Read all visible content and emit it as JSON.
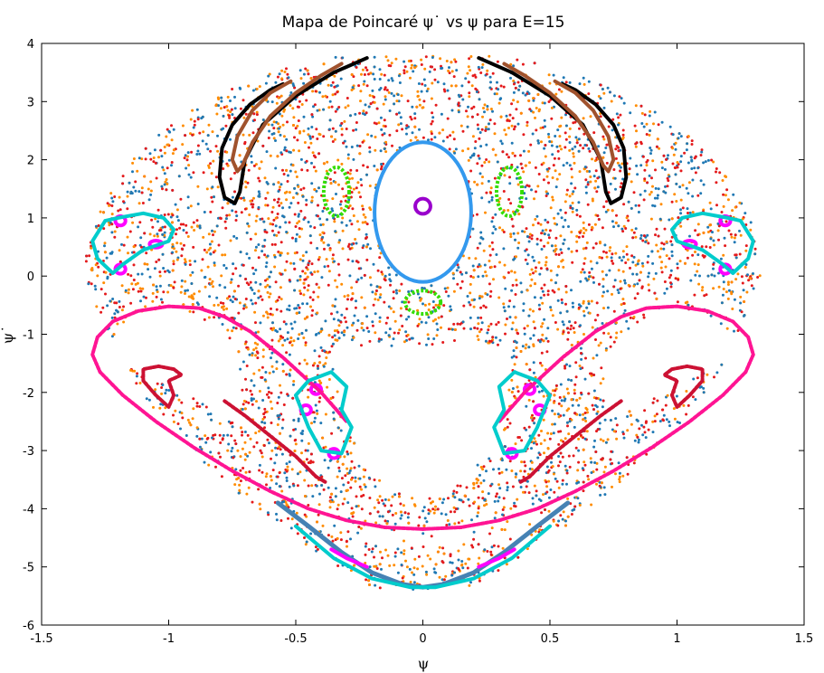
{
  "chart_data": {
    "type": "scatter",
    "title": "Mapa de Poincaré ψ˙ vs ψ para E=15",
    "xlabel": "ψ",
    "ylabel": "ψ˙",
    "xlim": [
      -1.5,
      1.5
    ],
    "ylim": [
      -6,
      4
    ],
    "xticks": [
      "-1.5",
      "-1",
      "-0.5",
      "0",
      "0.5",
      "1",
      "1.5"
    ],
    "yticks": [
      "-6",
      "-5",
      "-4",
      "-3",
      "-2",
      "-1",
      "0",
      "1",
      "2",
      "3",
      "4"
    ],
    "grid": false,
    "legend": "none",
    "colors": {
      "chaotic": [
        "#e41a1c",
        "#ff8c00",
        "#1f78b4"
      ],
      "blue_loop": "#3399ee",
      "purple_loop": "#9900cc",
      "green_islands": "#33dd00",
      "brown_curves": "#a0522d",
      "black_curves": "#000000",
      "pink_boundary": "#ff1493",
      "cyan_islands": "#00cccc",
      "magenta_centers": "#ff00ff",
      "red_islands": "#cc1133",
      "steelblue_band": "#4682b4"
    },
    "series": [
      {
        "id": "blue-loop",
        "kind": "ellipse",
        "center": [
          0,
          1.1
        ],
        "radius": [
          0.19,
          1.2
        ],
        "color": "#3399ee"
      },
      {
        "id": "purple-loop",
        "kind": "ellipse",
        "center": [
          0,
          1.2
        ],
        "radius": [
          0.03,
          0.13
        ],
        "color": "#9900cc"
      },
      {
        "id": "green-island-left",
        "kind": "ellipse",
        "center": [
          -0.34,
          1.45
        ],
        "radius": [
          0.05,
          0.42
        ],
        "color": "#33dd00"
      },
      {
        "id": "green-island-right",
        "kind": "ellipse",
        "center": [
          0.34,
          1.45
        ],
        "radius": [
          0.05,
          0.42
        ],
        "color": "#33dd00"
      },
      {
        "id": "green-island-bottom",
        "kind": "ellipse",
        "center": [
          0,
          -0.45
        ],
        "radius": [
          0.07,
          0.2
        ],
        "color": "#33dd00"
      },
      {
        "id": "magenta-top-left",
        "kind": "ellipse",
        "center": [
          -1.05,
          0.55
        ],
        "radius": [
          0.025,
          0.06
        ],
        "color": "#ff00ff"
      },
      {
        "id": "magenta-top-right",
        "kind": "ellipse",
        "center": [
          1.05,
          0.55
        ],
        "radius": [
          0.025,
          0.06
        ],
        "color": "#ff00ff"
      },
      {
        "id": "magenta-top-left-2",
        "kind": "ellipse",
        "center": [
          -1.19,
          0.95
        ],
        "radius": [
          0.02,
          0.08
        ],
        "color": "#ff00ff"
      },
      {
        "id": "magenta-top-right-2",
        "kind": "ellipse",
        "center": [
          1.19,
          0.95
        ],
        "radius": [
          0.02,
          0.08
        ],
        "color": "#ff00ff"
      },
      {
        "id": "magenta-top-left-3",
        "kind": "ellipse",
        "center": [
          -1.19,
          0.12
        ],
        "radius": [
          0.02,
          0.08
        ],
        "color": "#ff00ff"
      },
      {
        "id": "magenta-top-right-3",
        "kind": "ellipse",
        "center": [
          1.19,
          0.12
        ],
        "radius": [
          0.02,
          0.08
        ],
        "color": "#ff00ff"
      },
      {
        "id": "magenta-mid-left",
        "kind": "ellipse",
        "center": [
          -0.42,
          -1.95
        ],
        "radius": [
          0.02,
          0.08
        ],
        "color": "#ff00ff"
      },
      {
        "id": "magenta-mid-right",
        "kind": "ellipse",
        "center": [
          0.42,
          -1.95
        ],
        "radius": [
          0.02,
          0.08
        ],
        "color": "#ff00ff"
      },
      {
        "id": "magenta-mid-left-2",
        "kind": "ellipse",
        "center": [
          -0.35,
          -3.05
        ],
        "radius": [
          0.02,
          0.08
        ],
        "color": "#ff00ff"
      },
      {
        "id": "magenta-mid-right-2",
        "kind": "ellipse",
        "center": [
          0.35,
          -3.05
        ],
        "radius": [
          0.02,
          0.08
        ],
        "color": "#ff00ff"
      },
      {
        "id": "magenta-mid-left-3",
        "kind": "ellipse",
        "center": [
          -0.46,
          -2.3
        ],
        "radius": [
          0.02,
          0.08
        ],
        "color": "#ff00ff"
      },
      {
        "id": "magenta-mid-right-3",
        "kind": "ellipse",
        "center": [
          0.46,
          -2.3
        ],
        "radius": [
          0.02,
          0.08
        ],
        "color": "#ff00ff"
      },
      {
        "id": "black-curve-left",
        "kind": "polyline",
        "color": "#000000",
        "points": [
          [
            -0.22,
            3.75
          ],
          [
            -0.35,
            3.5
          ],
          [
            -0.5,
            3.1
          ],
          [
            -0.63,
            2.6
          ],
          [
            -0.7,
            2.0
          ],
          [
            -0.72,
            1.45
          ],
          [
            -0.74,
            1.25
          ],
          [
            -0.78,
            1.35
          ],
          [
            -0.8,
            1.7
          ],
          [
            -0.79,
            2.2
          ],
          [
            -0.75,
            2.6
          ],
          [
            -0.68,
            2.95
          ],
          [
            -0.6,
            3.2
          ],
          [
            -0.55,
            3.3
          ]
        ]
      },
      {
        "id": "black-curve-right",
        "kind": "polyline",
        "color": "#000000",
        "points": [
          [
            0.22,
            3.75
          ],
          [
            0.35,
            3.5
          ],
          [
            0.5,
            3.1
          ],
          [
            0.63,
            2.6
          ],
          [
            0.7,
            2.0
          ],
          [
            0.72,
            1.45
          ],
          [
            0.74,
            1.25
          ],
          [
            0.78,
            1.35
          ],
          [
            0.8,
            1.7
          ],
          [
            0.79,
            2.2
          ],
          [
            0.75,
            2.6
          ],
          [
            0.68,
            2.95
          ],
          [
            0.6,
            3.2
          ],
          [
            0.55,
            3.3
          ]
        ]
      },
      {
        "id": "brown-curve-left",
        "kind": "polyline",
        "color": "#a0522d",
        "points": [
          [
            -0.32,
            3.65
          ],
          [
            -0.4,
            3.45
          ],
          [
            -0.5,
            3.15
          ],
          [
            -0.6,
            2.75
          ],
          [
            -0.67,
            2.3
          ],
          [
            -0.71,
            1.9
          ],
          [
            -0.73,
            1.8
          ],
          [
            -0.75,
            2.0
          ],
          [
            -0.73,
            2.4
          ],
          [
            -0.67,
            2.85
          ],
          [
            -0.6,
            3.15
          ],
          [
            -0.52,
            3.35
          ]
        ]
      },
      {
        "id": "brown-curve-right",
        "kind": "polyline",
        "color": "#a0522d",
        "points": [
          [
            0.32,
            3.65
          ],
          [
            0.4,
            3.45
          ],
          [
            0.5,
            3.15
          ],
          [
            0.6,
            2.75
          ],
          [
            0.67,
            2.3
          ],
          [
            0.71,
            1.9
          ],
          [
            0.73,
            1.8
          ],
          [
            0.75,
            2.0
          ],
          [
            0.73,
            2.4
          ],
          [
            0.67,
            2.85
          ],
          [
            0.6,
            3.15
          ],
          [
            0.52,
            3.35
          ]
        ]
      },
      {
        "id": "pink-boundary-left",
        "kind": "polyline",
        "color": "#ff1493",
        "points": [
          [
            0.0,
            -4.35
          ],
          [
            -0.15,
            -4.32
          ],
          [
            -0.3,
            -4.2
          ],
          [
            -0.45,
            -4.0
          ],
          [
            -0.6,
            -3.7
          ],
          [
            -0.75,
            -3.35
          ],
          [
            -0.9,
            -2.95
          ],
          [
            -1.05,
            -2.5
          ],
          [
            -1.18,
            -2.05
          ],
          [
            -1.27,
            -1.65
          ],
          [
            -1.3,
            -1.35
          ],
          [
            -1.28,
            -1.05
          ],
          [
            -1.22,
            -0.78
          ],
          [
            -1.12,
            -0.6
          ],
          [
            -1.0,
            -0.52
          ],
          [
            -0.88,
            -0.55
          ],
          [
            -0.78,
            -0.7
          ],
          [
            -0.68,
            -0.95
          ],
          [
            -0.55,
            -1.4
          ],
          [
            -0.4,
            -2.0
          ],
          [
            -0.3,
            -2.5
          ]
        ]
      },
      {
        "id": "pink-boundary-right",
        "kind": "polyline",
        "color": "#ff1493",
        "points": [
          [
            0.0,
            -4.35
          ],
          [
            0.15,
            -4.32
          ],
          [
            0.3,
            -4.2
          ],
          [
            0.45,
            -4.0
          ],
          [
            0.6,
            -3.7
          ],
          [
            0.75,
            -3.35
          ],
          [
            0.9,
            -2.95
          ],
          [
            1.05,
            -2.5
          ],
          [
            1.18,
            -2.05
          ],
          [
            1.27,
            -1.65
          ],
          [
            1.3,
            -1.35
          ],
          [
            1.28,
            -1.05
          ],
          [
            1.22,
            -0.78
          ],
          [
            1.12,
            -0.6
          ],
          [
            1.0,
            -0.52
          ],
          [
            0.88,
            -0.55
          ],
          [
            0.78,
            -0.7
          ],
          [
            0.68,
            -0.95
          ],
          [
            0.55,
            -1.4
          ],
          [
            0.4,
            -2.0
          ],
          [
            0.3,
            -2.5
          ]
        ]
      },
      {
        "id": "red-island-left",
        "kind": "polyline",
        "color": "#cc1133",
        "points": [
          [
            -0.98,
            -1.6
          ],
          [
            -1.04,
            -1.55
          ],
          [
            -1.1,
            -1.6
          ],
          [
            -1.1,
            -1.8
          ],
          [
            -1.05,
            -2.05
          ],
          [
            -1.0,
            -2.25
          ],
          [
            -0.98,
            -2.05
          ],
          [
            -1.0,
            -1.8
          ],
          [
            -0.95,
            -1.7
          ],
          [
            -0.98,
            -1.6
          ]
        ]
      },
      {
        "id": "red-island-right",
        "kind": "polyline",
        "color": "#cc1133",
        "points": [
          [
            0.98,
            -1.6
          ],
          [
            1.04,
            -1.55
          ],
          [
            1.1,
            -1.6
          ],
          [
            1.1,
            -1.8
          ],
          [
            1.05,
            -2.05
          ],
          [
            1.0,
            -2.25
          ],
          [
            0.98,
            -2.05
          ],
          [
            1.0,
            -1.8
          ],
          [
            0.95,
            -1.7
          ],
          [
            0.98,
            -1.6
          ]
        ]
      },
      {
        "id": "red-streak-left",
        "kind": "polyline",
        "color": "#cc1133",
        "points": [
          [
            -0.78,
            -2.15
          ],
          [
            -0.7,
            -2.4
          ],
          [
            -0.6,
            -2.75
          ],
          [
            -0.5,
            -3.1
          ],
          [
            -0.42,
            -3.45
          ],
          [
            -0.38,
            -3.55
          ]
        ]
      },
      {
        "id": "red-streak-right",
        "kind": "polyline",
        "color": "#cc1133",
        "points": [
          [
            0.78,
            -2.15
          ],
          [
            0.7,
            -2.4
          ],
          [
            0.6,
            -2.75
          ],
          [
            0.5,
            -3.1
          ],
          [
            0.42,
            -3.45
          ],
          [
            0.38,
            -3.55
          ]
        ]
      },
      {
        "id": "cyan-island-left-top",
        "kind": "polyline",
        "color": "#00cccc",
        "points": [
          [
            -1.25,
            0.95
          ],
          [
            -1.2,
            1.0
          ],
          [
            -1.1,
            1.08
          ],
          [
            -1.02,
            1.0
          ],
          [
            -0.98,
            0.8
          ],
          [
            -1.0,
            0.6
          ],
          [
            -1.1,
            0.45
          ],
          [
            -1.18,
            0.2
          ],
          [
            -1.22,
            0.05
          ],
          [
            -1.28,
            0.3
          ],
          [
            -1.3,
            0.6
          ],
          [
            -1.25,
            0.95
          ]
        ]
      },
      {
        "id": "cyan-island-right-top",
        "kind": "polyline",
        "color": "#00cccc",
        "points": [
          [
            1.25,
            0.95
          ],
          [
            1.2,
            1.0
          ],
          [
            1.1,
            1.08
          ],
          [
            1.02,
            1.0
          ],
          [
            0.98,
            0.8
          ],
          [
            1.0,
            0.6
          ],
          [
            1.1,
            0.45
          ],
          [
            1.18,
            0.2
          ],
          [
            1.22,
            0.05
          ],
          [
            1.28,
            0.3
          ],
          [
            1.3,
            0.6
          ],
          [
            1.25,
            0.95
          ]
        ]
      },
      {
        "id": "cyan-island-left-mid",
        "kind": "polyline",
        "color": "#00cccc",
        "points": [
          [
            -0.5,
            -2.05
          ],
          [
            -0.45,
            -1.8
          ],
          [
            -0.36,
            -1.65
          ],
          [
            -0.3,
            -1.9
          ],
          [
            -0.32,
            -2.3
          ],
          [
            -0.28,
            -2.6
          ],
          [
            -0.32,
            -3.05
          ],
          [
            -0.4,
            -3.0
          ],
          [
            -0.45,
            -2.6
          ],
          [
            -0.5,
            -2.05
          ]
        ]
      },
      {
        "id": "cyan-island-right-mid",
        "kind": "polyline",
        "color": "#00cccc",
        "points": [
          [
            0.5,
            -2.05
          ],
          [
            0.45,
            -1.8
          ],
          [
            0.36,
            -1.65
          ],
          [
            0.3,
            -1.9
          ],
          [
            0.32,
            -2.3
          ],
          [
            0.28,
            -2.6
          ],
          [
            0.32,
            -3.05
          ],
          [
            0.4,
            -3.0
          ],
          [
            0.45,
            -2.6
          ],
          [
            0.5,
            -2.05
          ]
        ]
      },
      {
        "id": "steelblue-band",
        "kind": "polyline",
        "color": "#4682b4",
        "points": [
          [
            -0.57,
            -3.9
          ],
          [
            -0.45,
            -4.3
          ],
          [
            -0.32,
            -4.75
          ],
          [
            -0.2,
            -5.1
          ],
          [
            -0.08,
            -5.3
          ],
          [
            0.0,
            -5.35
          ],
          [
            0.08,
            -5.3
          ],
          [
            0.2,
            -5.1
          ],
          [
            0.32,
            -4.75
          ],
          [
            0.45,
            -4.3
          ],
          [
            0.57,
            -3.9
          ]
        ]
      },
      {
        "id": "cyan-lower-band",
        "kind": "polyline",
        "color": "#00cccc",
        "points": [
          [
            -0.5,
            -4.3
          ],
          [
            -0.35,
            -4.85
          ],
          [
            -0.2,
            -5.2
          ],
          [
            -0.05,
            -5.35
          ],
          [
            0.05,
            -5.35
          ],
          [
            0.2,
            -5.2
          ],
          [
            0.35,
            -4.85
          ],
          [
            0.5,
            -4.3
          ]
        ]
      },
      {
        "id": "magenta-lower-left",
        "kind": "polyline",
        "color": "#ff00ff",
        "points": [
          [
            -0.36,
            -4.7
          ],
          [
            -0.3,
            -4.85
          ],
          [
            -0.22,
            -5.0
          ]
        ]
      },
      {
        "id": "magenta-lower-right",
        "kind": "polyline",
        "color": "#ff00ff",
        "points": [
          [
            0.36,
            -4.7
          ],
          [
            0.3,
            -4.85
          ],
          [
            0.22,
            -5.0
          ]
        ]
      }
    ]
  }
}
